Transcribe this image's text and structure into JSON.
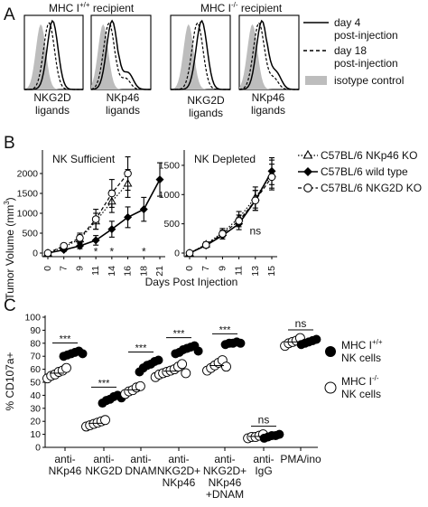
{
  "figure": {
    "panel_a": {
      "letter": "A",
      "recipient_titles": [
        {
          "base": "MHC I",
          "sup": "+/+",
          "rest": " recipient"
        },
        {
          "base": "MHC I",
          "sup": "-/-",
          "rest": " recipient"
        }
      ],
      "histogram_labels": [
        [
          "NKG2D",
          "ligands"
        ],
        [
          "NKp46",
          "ligands"
        ],
        [
          "NKG2D",
          "ligands"
        ],
        [
          "NKp46",
          "ligands"
        ]
      ],
      "legend": [
        {
          "style": "solid",
          "lines": [
            "day 4",
            "post-injection"
          ]
        },
        {
          "style": "dashed",
          "lines": [
            "day 18",
            "post-injection"
          ]
        },
        {
          "style": "fill",
          "lines": [
            "isotype control"
          ]
        }
      ],
      "colors": {
        "isotype": "#bdbdbd",
        "line": "#000000"
      }
    },
    "panel_b": {
      "letter": "B",
      "ylabel": "Tumor Volume (mm",
      "ylabel_sup": "3",
      "ylabel_end": ")",
      "xlabel": "Days Post Injection",
      "legend": [
        {
          "marker": "open-triangle",
          "line": "dotted",
          "text": "C57BL/6 NKp46 KO"
        },
        {
          "marker": "filled-diamond",
          "line": "solid",
          "text": "C57BL/6 wild type"
        },
        {
          "marker": "open-circle",
          "line": "dashed",
          "text": "C57BL/6 NKG2D KO"
        }
      ]
    },
    "panel_c": {
      "letter": "C",
      "ylabel": "% CD107a+",
      "legend": [
        {
          "marker": "filled-circle",
          "base": "MHC I",
          "sup": "+/+",
          "line2": "NK cells"
        },
        {
          "marker": "open-circle",
          "base": "MHC I",
          "sup": "-/-",
          "line2": "NK cells"
        }
      ],
      "category_labels": [
        [
          "anti-",
          "NKp46"
        ],
        [
          "anti-",
          "NKG2D"
        ],
        [
          "anti-",
          "DNAM"
        ],
        [
          "anti-",
          "NKG2D+",
          "NKp46"
        ],
        [
          "anti-",
          "NKG2D+",
          "NKp46",
          "+DNAM"
        ],
        [
          "anti-",
          "IgG"
        ],
        [
          "PMA/ino"
        ]
      ]
    }
  },
  "chart_data": [
    {
      "type": "line",
      "title": "NK Sufficient",
      "x": [
        0,
        7,
        9,
        11,
        14,
        16,
        18,
        21
      ],
      "x_tick_labels": [
        "0",
        "7",
        "9",
        "11",
        "14",
        "16",
        "18",
        "21"
      ],
      "ylim": [
        0,
        2500
      ],
      "y_ticks": [
        0,
        500,
        1000,
        1500,
        2000
      ],
      "series": [
        {
          "name": "C57BL/6 NKp46 KO",
          "x": [
            0,
            7,
            9,
            11,
            14,
            16
          ],
          "values": [
            0,
            150,
            350,
            800,
            1300,
            1750
          ],
          "err": [
            0,
            60,
            110,
            200,
            280,
            350
          ]
        },
        {
          "name": "C57BL/6 wild type",
          "x": [
            0,
            7,
            9,
            11,
            14,
            16,
            18,
            21
          ],
          "values": [
            0,
            80,
            180,
            320,
            600,
            900,
            1100,
            1850
          ],
          "err": [
            0,
            40,
            70,
            120,
            200,
            260,
            300,
            420
          ]
        },
        {
          "name": "C57BL/6 NKG2D KO",
          "x": [
            0,
            7,
            9,
            11,
            14,
            16
          ],
          "values": [
            0,
            180,
            380,
            850,
            1500,
            2000
          ],
          "err": [
            0,
            60,
            120,
            250,
            350,
            420
          ]
        }
      ],
      "annotations": [
        {
          "x": 11,
          "y": 30,
          "text": "*"
        },
        {
          "x": 14,
          "y": 30,
          "text": "*"
        },
        {
          "x": 18,
          "y": 30,
          "text": "*"
        }
      ],
      "grid": false
    },
    {
      "type": "line",
      "title": "NK Depleted",
      "x": [
        0,
        7,
        9,
        11,
        13,
        15
      ],
      "x_tick_labels": [
        "0",
        "7",
        "9",
        "11",
        "13",
        "15"
      ],
      "ylim": [
        0,
        1700
      ],
      "y_ticks": [
        0,
        500,
        1000,
        1500
      ],
      "series": [
        {
          "name": "C57BL/6 NKp46 KO",
          "x": [
            0,
            7,
            9,
            11,
            13,
            15
          ],
          "values": [
            0,
            150,
            350,
            600,
            950,
            1350
          ],
          "err": [
            0,
            40,
            70,
            110,
            180,
            240
          ]
        },
        {
          "name": "C57BL/6 wild type",
          "x": [
            0,
            7,
            9,
            11,
            13,
            15
          ],
          "values": [
            0,
            130,
            300,
            500,
            900,
            1400
          ],
          "err": [
            0,
            40,
            60,
            100,
            170,
            230
          ]
        },
        {
          "name": "C57BL/6 NKG2D KO",
          "x": [
            0,
            7,
            9,
            11,
            13,
            15
          ],
          "values": [
            0,
            140,
            330,
            550,
            900,
            1300
          ],
          "err": [
            0,
            40,
            60,
            100,
            170,
            220
          ]
        }
      ],
      "annotations": [
        {
          "x": 13,
          "y": 380,
          "text": "ns"
        }
      ],
      "grid": false
    },
    {
      "type": "scatter",
      "ylabel": "% CD107a+",
      "ylim": [
        0,
        100
      ],
      "y_ticks": [
        0,
        10,
        20,
        30,
        40,
        50,
        60,
        70,
        80,
        90,
        100
      ],
      "categories": [
        "anti-NKp46",
        "anti-NKG2D",
        "anti-DNAM",
        "anti-NKG2D+NKp46",
        "anti-NKG2D+NKp46+DNAM",
        "anti-IgG",
        "PMA/ino"
      ],
      "series": [
        {
          "name": "MHC I+/+ NK cells",
          "values": [
            [
              70,
              71,
              72,
              73,
              74,
              72
            ],
            [
              34,
              36,
              37,
              39,
              40,
              38
            ],
            [
              58,
              61,
              63,
              64,
              66,
              67
            ],
            [
              72,
              73,
              75,
              76,
              77,
              78,
              74
            ],
            [
              79,
              80,
              80,
              81,
              80
            ],
            [
              7,
              8,
              9,
              9,
              10
            ],
            [
              79,
              80,
              81,
              82,
              83
            ]
          ]
        },
        {
          "name": "MHC I-/- NK cells",
          "values": [
            [
              53,
              55,
              56,
              58,
              59,
              61
            ],
            [
              16,
              17,
              18,
              19,
              20,
              21
            ],
            [
              41,
              43,
              44,
              46,
              47
            ],
            [
              54,
              56,
              57,
              58,
              59,
              60,
              62,
              64,
              57
            ],
            [
              59,
              61,
              63,
              65,
              67,
              62
            ],
            [
              7,
              8,
              8,
              9,
              10
            ],
            [
              78,
              80,
              81,
              82,
              84
            ]
          ]
        }
      ],
      "significance": [
        "***",
        "***",
        "***",
        "***",
        "***",
        "ns",
        "ns"
      ]
    }
  ]
}
